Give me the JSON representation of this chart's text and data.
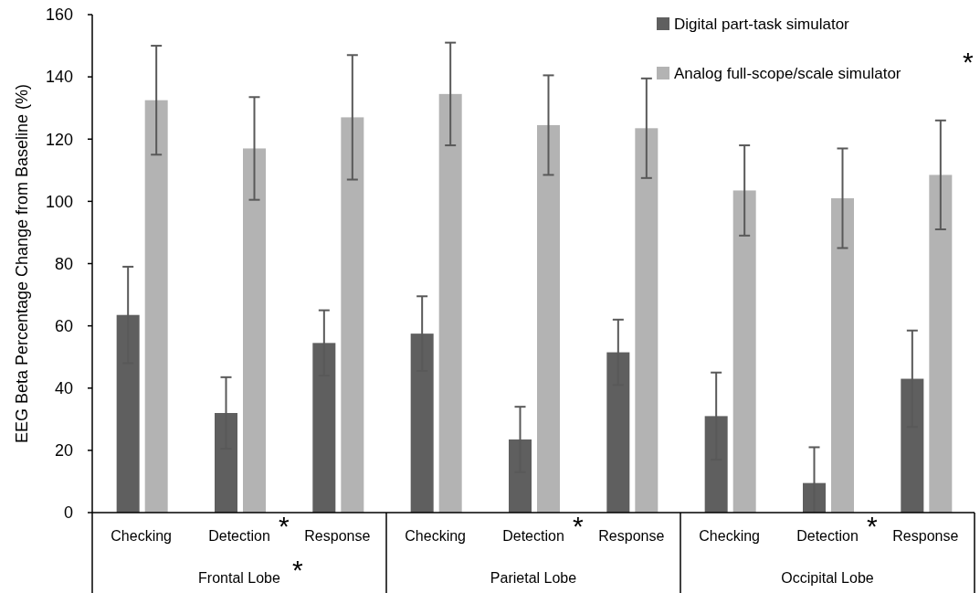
{
  "chart_data": {
    "type": "bar",
    "ylabel": "EEG Beta Percentage Change from Baseline (%)",
    "categories": [
      "Checking",
      "Detection",
      "Response",
      "Checking",
      "Detection",
      "Response",
      "Checking",
      "Detection",
      "Response"
    ],
    "series": [
      {
        "name": "Digital part-task simulator",
        "color": "#5f5f5f",
        "values": [
          63.5,
          32,
          54.5,
          57.5,
          23.5,
          51.5,
          31,
          9.5,
          43
        ],
        "errors": [
          15.5,
          11.5,
          10.5,
          12,
          10.5,
          10.5,
          14,
          [
            0,
            21
          ],
          15.5
        ]
      },
      {
        "name": "Analog full-scope/scale simulator",
        "color": "#b3b3b3",
        "values": [
          132.5,
          117,
          127,
          134.5,
          124.5,
          123.5,
          103.5,
          101,
          108.5
        ],
        "errors": [
          17.5,
          16.5,
          20,
          16.5,
          16,
          16,
          14.5,
          16,
          17.5
        ]
      }
    ],
    "ylim": [
      0,
      160
    ],
    "yticks": [
      0,
      20,
      40,
      60,
      80,
      100,
      120,
      140,
      160
    ],
    "legend": "top right",
    "annotations": [
      "Frontal Lobe",
      "Parietal Lobe",
      "Occipital Lobe",
      "*",
      "*",
      "*",
      "*",
      "*"
    ]
  }
}
